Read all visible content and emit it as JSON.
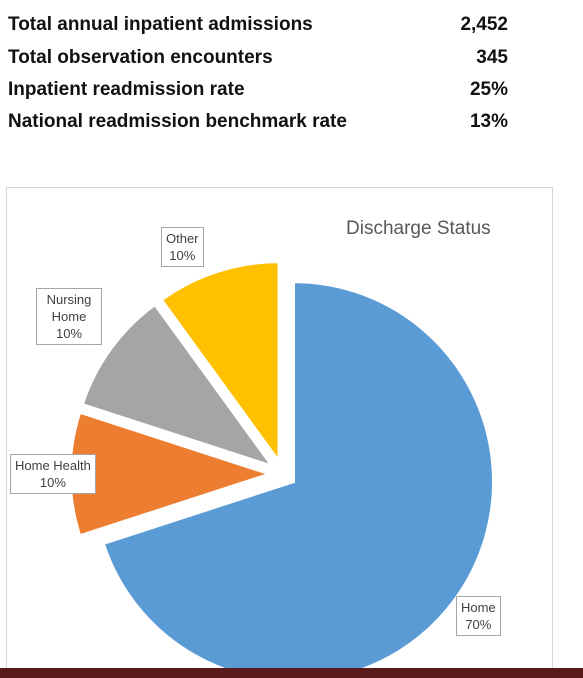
{
  "stats": [
    {
      "label": "Total annual inpatient admissions",
      "value": "2,452"
    },
    {
      "label": "Total observation encounters",
      "value": "345"
    },
    {
      "label": "Inpatient readmission rate",
      "value": "25%"
    },
    {
      "label": "National readmission benchmark rate",
      "value": "13%"
    }
  ],
  "chart_data": {
    "type": "pie",
    "title": "Discharge Status",
    "slices": [
      {
        "label": "Home",
        "value": 70,
        "display": "70%",
        "color": "#5b9bd5"
      },
      {
        "label": "Home Health",
        "value": 10,
        "display": "10%",
        "color": "#ed7d31"
      },
      {
        "label": "Nursing Home",
        "value": 10,
        "display": "10%",
        "color": "#a5a5a5"
      },
      {
        "label": "Other",
        "value": 10,
        "display": "10%",
        "color": "#ffc000"
      }
    ],
    "legend": "none"
  }
}
